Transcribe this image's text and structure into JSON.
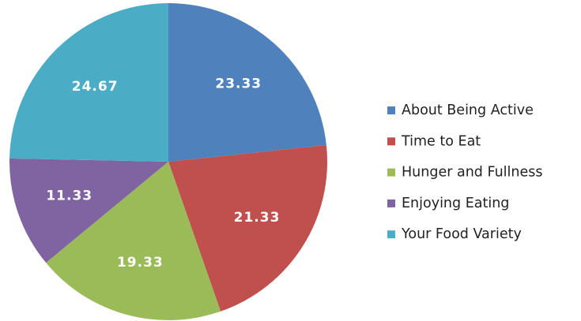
{
  "chart_data": {
    "type": "pie",
    "categories": [
      "About Being Active",
      "Time to Eat",
      "Hunger and Fullness",
      "Enjoying Eating",
      "Your Food Variety"
    ],
    "values": [
      23.33,
      21.33,
      19.33,
      11.33,
      24.67
    ],
    "colors": [
      "#4f81bd",
      "#c0504d",
      "#9bbb59",
      "#8064a2",
      "#4bacc6"
    ],
    "legend": "right"
  }
}
